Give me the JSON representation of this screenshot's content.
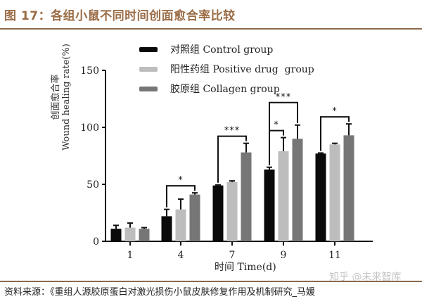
{
  "figure": {
    "title": "图 17：各组小鼠不同时间创面愈合率比较",
    "source": "资料来源：《重组人源胶原蛋白对激光损伤小鼠皮肤修复作用及机制研究_马媛",
    "watermark": "知乎 @未来智库"
  },
  "chart_data": {
    "type": "bar",
    "title": "",
    "xlabel": "时间 Time(d)",
    "ylabel_cn": "创面愈合率",
    "ylabel_en": "Wound healing rate(%)",
    "categories": [
      "1",
      "4",
      "7",
      "9",
      "11"
    ],
    "ylim": [
      0,
      150
    ],
    "yticks": [
      "0",
      "50",
      "100",
      "150"
    ],
    "ytick_values": [
      0,
      50,
      100,
      150
    ],
    "grid": false,
    "legend_position": "top-center",
    "series": [
      {
        "name": "对照组 Control group",
        "color": "#0a0a0a",
        "values": [
          11,
          22,
          49,
          63,
          77
        ],
        "errors": [
          3,
          6,
          0.5,
          2,
          0.5
        ]
      },
      {
        "name": "阳性药组 Positive drug  group",
        "color": "#bdbdbd",
        "values": [
          12,
          28,
          52,
          79,
          85
        ],
        "errors": [
          4,
          9,
          1,
          12,
          1
        ]
      },
      {
        "name": "胶原组 Collagen group",
        "color": "#767676",
        "values": [
          11,
          41,
          78,
          90,
          93
        ],
        "errors": [
          1,
          1.5,
          8,
          12,
          10
        ]
      }
    ],
    "significance": [
      {
        "category": "4",
        "from": 0,
        "to": 2,
        "label": "*",
        "level": 0
      },
      {
        "category": "7",
        "from": 0,
        "to": 2,
        "label": "***",
        "level": 0
      },
      {
        "category": "9",
        "from": 0,
        "to": 1,
        "label": "*",
        "level": 0
      },
      {
        "category": "9",
        "from": 0,
        "to": 2,
        "label": "***",
        "level": 1
      },
      {
        "category": "11",
        "from": 0,
        "to": 2,
        "label": "*",
        "level": 0
      }
    ]
  }
}
